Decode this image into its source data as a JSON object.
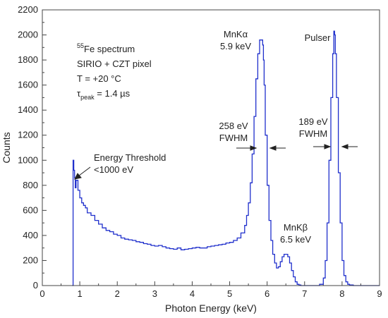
{
  "chart_data": {
    "type": "line",
    "xlabel": "Photon Energy (keV)",
    "ylabel": "Counts",
    "xlim": [
      0,
      9
    ],
    "ylim": [
      0,
      2200
    ],
    "xticks": [
      0,
      1,
      2,
      3,
      4,
      5,
      6,
      7,
      8,
      9
    ],
    "yticks": [
      0,
      200,
      400,
      600,
      800,
      1000,
      1200,
      1400,
      1600,
      1800,
      2000,
      2200
    ],
    "grid": false,
    "line_color": "#1f2fcc",
    "series": [
      {
        "x": [
          0.8,
          0.82,
          0.84,
          0.86,
          0.88,
          0.9,
          0.95,
          1.0,
          1.05,
          1.1,
          1.15,
          1.2,
          1.3,
          1.4,
          1.5,
          1.6,
          1.7,
          1.8,
          1.9,
          2.0,
          2.1,
          2.2,
          2.3,
          2.4,
          2.5,
          2.6,
          2.7,
          2.8,
          2.9,
          3.0,
          3.1,
          3.2,
          3.3,
          3.4,
          3.5,
          3.6,
          3.7,
          3.8,
          3.9,
          4.0,
          4.1,
          4.2,
          4.3,
          4.4,
          4.5,
          4.6,
          4.7,
          4.8,
          4.9,
          5.0,
          5.1,
          5.2,
          5.3,
          5.4,
          5.45,
          5.5,
          5.55,
          5.6,
          5.65,
          5.7,
          5.75,
          5.8,
          5.85,
          5.88,
          5.9,
          5.92,
          5.95,
          6.0,
          6.05,
          6.1,
          6.15,
          6.2,
          6.25,
          6.3,
          6.35,
          6.4,
          6.45,
          6.5,
          6.55,
          6.6,
          6.65,
          6.7,
          6.75,
          6.8,
          6.85,
          6.9,
          6.95,
          7.0,
          7.1,
          7.2,
          7.3,
          7.4,
          7.5,
          7.55,
          7.6,
          7.65,
          7.7,
          7.75,
          7.78,
          7.8,
          7.82,
          7.85,
          7.9,
          7.95,
          8.0,
          8.05,
          8.1,
          8.15,
          8.2,
          8.3,
          8.5,
          9.0
        ],
        "values": [
          0,
          1000,
          920,
          860,
          780,
          840,
          760,
          700,
          660,
          640,
          620,
          580,
          560,
          520,
          490,
          460,
          440,
          430,
          410,
          400,
          380,
          370,
          365,
          360,
          350,
          345,
          335,
          330,
          320,
          315,
          320,
          310,
          300,
          295,
          290,
          300,
          285,
          290,
          295,
          300,
          305,
          300,
          300,
          310,
          315,
          320,
          325,
          330,
          340,
          345,
          360,
          380,
          420,
          480,
          560,
          660,
          820,
          1050,
          1350,
          1650,
          1850,
          1960,
          1960,
          1920,
          1800,
          1600,
          1200,
          800,
          520,
          360,
          250,
          180,
          140,
          150,
          190,
          230,
          250,
          250,
          230,
          180,
          120,
          70,
          30,
          10,
          5,
          0,
          0,
          0,
          0,
          0,
          0,
          10,
          60,
          200,
          500,
          1000,
          1500,
          1850,
          2030,
          2000,
          1850,
          1500,
          900,
          500,
          200,
          80,
          30,
          10,
          5,
          0,
          0,
          0
        ]
      }
    ],
    "annotations": {
      "spectrum_title_sup": "55",
      "spectrum_title": "Fe spectrum",
      "detector": "SIRIO + CZT pixel",
      "temperature": "T = +20 °C",
      "tau_symbol": "τ",
      "tau_sub": "peak",
      "tau_value": " = 1.4 µs",
      "mnka_line1": "MnKα",
      "mnka_line2": "5.9 keV",
      "mnkb_line1": "MnKβ",
      "mnkb_line2": "6.5 keV",
      "pulser": "Pulser",
      "threshold_line1": "Energy Threshold",
      "threshold_line2": "<1000 eV",
      "fwhm1_value": "258 eV",
      "fwhm1_label": "FWHM",
      "fwhm2_value": "189 eV",
      "fwhm2_label": "FWHM"
    }
  }
}
